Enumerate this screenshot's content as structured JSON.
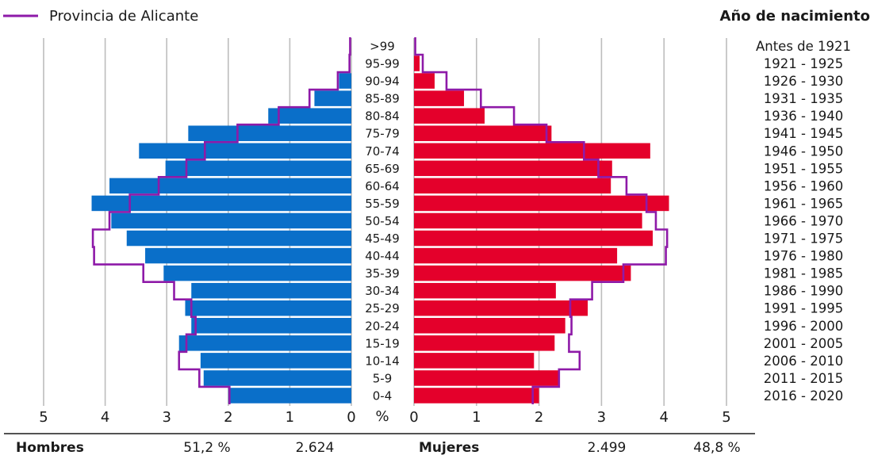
{
  "chart_data": {
    "type": "bar",
    "legend": {
      "line_label": "Provincia de Alicante"
    },
    "right_title": "Año de nacimiento",
    "age_groups": [
      "0-4",
      "5-9",
      "10-14",
      "15-19",
      "20-24",
      "25-29",
      "30-34",
      "35-39",
      "40-44",
      "45-49",
      "50-54",
      "55-59",
      "60-64",
      "65-69",
      "70-74",
      "75-79",
      "80-84",
      "85-89",
      "90-94",
      "95-99",
      ">99"
    ],
    "birth_years": [
      "2016 - 2020",
      "2011 - 2015",
      "2006 - 2010",
      "2001 - 2005",
      "1996 - 2000",
      "1991 - 1995",
      "1986 - 1990",
      "1981 - 1985",
      "1976 - 1980",
      "1971 - 1975",
      "1966 - 1970",
      "1961 - 1965",
      "1956 - 1960",
      "1951 - 1955",
      "1946 - 1950",
      "1941 - 1945",
      "1936 - 1940",
      "1931 - 1935",
      "1926 - 1930",
      "1921 - 1925",
      "Antes de 1921"
    ],
    "series": [
      {
        "name": "Hombres",
        "side": "left",
        "color": "#0a6fc9",
        "values": [
          2.0,
          2.4,
          2.45,
          2.8,
          2.6,
          2.7,
          2.6,
          3.05,
          3.35,
          3.65,
          3.9,
          4.22,
          3.93,
          3.02,
          3.45,
          2.65,
          1.35,
          0.6,
          0.2,
          0.0,
          0.0
        ]
      },
      {
        "name": "Mujeres",
        "side": "right",
        "color": "#e4002b",
        "values": [
          2.0,
          2.33,
          1.92,
          2.25,
          2.42,
          2.78,
          2.27,
          3.47,
          3.25,
          3.82,
          3.65,
          4.08,
          3.15,
          3.17,
          3.78,
          2.2,
          1.13,
          0.8,
          0.33,
          0.09,
          0.0
        ]
      },
      {
        "name": "Provincia de Alicante",
        "color": "#8e1aa8",
        "type": "line",
        "left_values": [
          1.98,
          2.47,
          2.8,
          2.68,
          2.53,
          2.6,
          2.88,
          3.38,
          4.18,
          4.2,
          3.93,
          3.6,
          3.13,
          2.68,
          2.38,
          1.85,
          1.18,
          0.68,
          0.22,
          0.03,
          0.02
        ],
        "right_values": [
          1.9,
          2.32,
          2.65,
          2.48,
          2.52,
          2.5,
          2.85,
          3.35,
          4.03,
          4.05,
          3.87,
          3.72,
          3.4,
          2.95,
          2.72,
          2.12,
          1.6,
          1.07,
          0.52,
          0.14,
          0.02
        ]
      }
    ],
    "xlim": [
      0,
      5
    ],
    "x_ticks_left": [
      "5",
      "4",
      "3",
      "2",
      "1",
      "0"
    ],
    "x_ticks_right": [
      "0",
      "1",
      "2",
      "3",
      "4",
      "5"
    ],
    "unit_label": "%",
    "grid": true
  },
  "footer": {
    "hombres_label": "Hombres",
    "hombres_pct": "51,2 %",
    "hombres_count": "2.624",
    "mujeres_label": "Mujeres",
    "mujeres_count": "2.499",
    "mujeres_pct": "48,8 %"
  }
}
